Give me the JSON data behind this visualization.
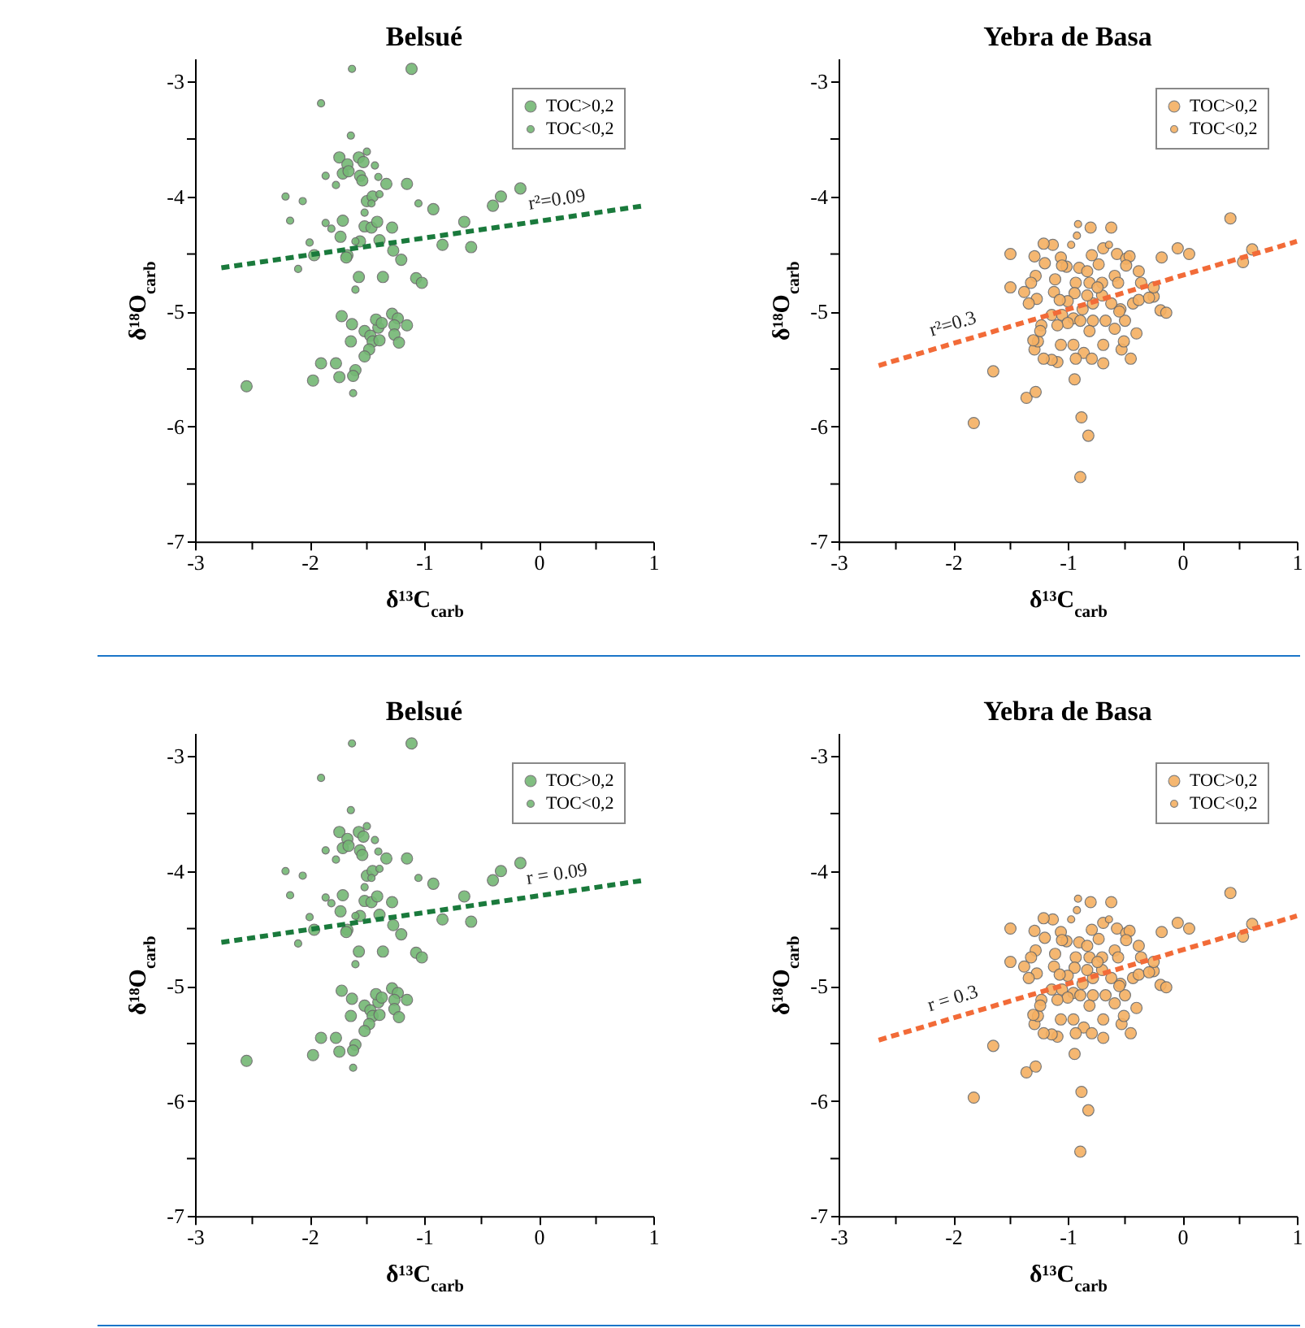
{
  "chart_data": [
    {
      "type": "scatter",
      "title": "Belsué",
      "xlabel": "δ¹³C$_{carb}$",
      "ylabel": "δ¹⁸O$_{carb}$",
      "xlim": [
        -3,
        1
      ],
      "xticks": [
        -3,
        {
          "value": -2.5,
          "label": null
        },
        -2,
        {
          "value": -1.5,
          "label": null
        },
        -1,
        {
          "value": -0.5,
          "label": null
        },
        0,
        {
          "value": 0.5,
          "label": null
        },
        1
      ],
      "ylim": [
        -7,
        -2.8
      ],
      "yticks": [
        -7,
        {
          "value": -6.5,
          "label": null
        },
        -6,
        {
          "value": -5.5,
          "label": null
        },
        -5,
        {
          "value": -4.5,
          "label": null
        },
        -4,
        {
          "value": -3.5,
          "label": null
        },
        -3
      ],
      "legend": "top right",
      "annotations": [
        "r²=0.09"
      ],
      "series": [
        {
          "name": "TOC>0,2",
          "type": "scatter",
          "color": "#74b874",
          "x": [
            -1.11,
            -1.74,
            -1.67,
            -1.71,
            -1.66,
            -1.57,
            -1.53,
            -1.56,
            -1.54,
            -1.33,
            -1.15,
            -1.71,
            -1.73,
            -1.67,
            -1.96,
            -1.68,
            -1.56,
            -1.52,
            -1.46,
            -1.41,
            -1.39,
            -1.28,
            -1.27,
            -1.2,
            -1.5,
            -1.45,
            -0.92,
            -0.65,
            -0.84,
            -0.59,
            -0.4,
            -0.33,
            -0.16,
            -1.57,
            -1.36,
            -1.07,
            -1.02,
            -1.72,
            -1.63,
            -1.52,
            -1.64,
            -1.47,
            -1.4,
            -1.42,
            -1.37,
            -1.28,
            -1.23,
            -1.26,
            -1.15,
            -1.45,
            -1.39,
            -1.26,
            -1.22,
            -1.48,
            -1.52,
            -1.9,
            -1.77,
            -1.97,
            -1.74,
            -1.6,
            -1.62,
            -2.55
          ],
          "values": [
            -2.89,
            -3.66,
            -3.72,
            -3.8,
            -3.78,
            -3.66,
            -3.7,
            -3.82,
            -3.86,
            -3.89,
            -3.89,
            -4.21,
            -4.35,
            -4.51,
            -4.51,
            -4.53,
            -4.39,
            -4.26,
            -4.27,
            -4.22,
            -4.38,
            -4.27,
            -4.47,
            -4.55,
            -4.04,
            -4.0,
            -4.11,
            -4.22,
            -4.42,
            -4.44,
            -4.08,
            -4.0,
            -3.93,
            -4.7,
            -4.7,
            -4.71,
            -4.75,
            -5.04,
            -5.11,
            -5.17,
            -5.26,
            -5.21,
            -5.14,
            -5.07,
            -5.1,
            -5.02,
            -5.06,
            -5.12,
            -5.12,
            -5.26,
            -5.25,
            -5.2,
            -5.27,
            -5.33,
            -5.39,
            -5.45,
            -5.45,
            -5.6,
            -5.57,
            -5.51,
            -5.56,
            -5.65
          ]
        },
        {
          "name": "TOC<0,2",
          "type": "scatter",
          "color": "#74b874",
          "x": [
            -1.63,
            -1.9,
            -1.64,
            -1.5,
            -1.43,
            -1.86,
            -1.77,
            -1.4,
            -1.39,
            -2.21,
            -2.06,
            -1.46,
            -1.05,
            -1.52,
            -2.17,
            -1.86,
            -1.81,
            -2.0,
            -1.6,
            -2.1,
            -1.6,
            -1.62
          ],
          "values": [
            -2.89,
            -3.19,
            -3.47,
            -3.61,
            -3.73,
            -3.82,
            -3.9,
            -3.83,
            -3.98,
            -4.0,
            -4.04,
            -4.06,
            -4.06,
            -4.14,
            -4.21,
            -4.23,
            -4.28,
            -4.4,
            -4.39,
            -4.63,
            -4.81,
            -5.71
          ]
        },
        {
          "type": "line",
          "color": "#1a7a3c",
          "line_style": "dashed",
          "x": [
            -2.77,
            0.92
          ],
          "values": [
            -4.62,
            -4.08
          ]
        }
      ]
    },
    {
      "type": "scatter",
      "title": "Yebra de Basa",
      "xlabel": "δ¹³C$_{carb}$",
      "ylabel": "δ¹⁸O$_{carb}$",
      "xlim": [
        -3,
        1
      ],
      "xticks": [
        -3,
        {
          "value": -2.5,
          "label": null
        },
        -2,
        {
          "value": -1.5,
          "label": null
        },
        -1,
        {
          "value": -0.5,
          "label": null
        },
        0,
        {
          "value": 0.5,
          "label": null
        },
        1
      ],
      "ylim": [
        -7,
        -2.8
      ],
      "yticks": [
        -7,
        {
          "value": -6.5,
          "label": null
        },
        -6,
        {
          "value": -5.5,
          "label": null
        },
        -5,
        {
          "value": -4.5,
          "label": null
        },
        -4,
        {
          "value": -3.5,
          "label": null
        },
        -3
      ],
      "legend": "top right",
      "annotations": [
        "r²=0.3"
      ],
      "series": [
        {
          "name": "TOC>0,2",
          "type": "scatter",
          "color": "#f5b062",
          "x": [
            0.42,
            0.61,
            0.53,
            -0.04,
            0.06,
            -0.18,
            -0.25,
            -0.19,
            -0.14,
            -0.38,
            -0.36,
            -0.4,
            -0.45,
            -0.5,
            -0.54,
            -0.53,
            -0.62,
            -0.8,
            -1.13,
            -1.21,
            -1.2,
            -1.29,
            -1.5,
            -1.5,
            -1.38,
            -1.28,
            -1.32,
            -1.27,
            -1.34,
            -1.11,
            -1.12,
            -1.06,
            -1.01,
            -0.9,
            -0.79,
            -0.73,
            -0.69,
            -0.57,
            -0.49,
            -0.46,
            -0.59,
            -0.56,
            -0.7,
            -0.81,
            -0.93,
            -0.94,
            -1.0,
            -1.07,
            -1.14,
            -1.05,
            -0.95,
            -0.87,
            -0.78,
            -0.7,
            -0.62,
            -0.55,
            -0.67,
            -0.78,
            -0.89,
            -1.0,
            -1.09,
            -1.23,
            -1.06,
            -0.95,
            -0.86,
            -0.81,
            -0.69,
            -0.59,
            -0.51,
            -0.79,
            -0.69,
            -0.93,
            -1.09,
            -1.14,
            -1.21,
            -1.29,
            -1.26,
            -1.3,
            -1.65,
            -1.36,
            -1.28,
            -0.94,
            -1.82,
            -0.88,
            -0.82,
            -0.89,
            -0.43,
            -0.38,
            -0.25,
            -0.29,
            -0.49,
            -0.83,
            -0.74,
            -1.24,
            -1.05,
            -0.83
          ],
          "values": [
            -4.19,
            -4.46,
            -4.57,
            -4.45,
            -4.5,
            -4.53,
            -4.87,
            -4.99,
            -5.01,
            -4.65,
            -4.75,
            -5.19,
            -5.41,
            -5.08,
            -4.98,
            -5.33,
            -4.27,
            -4.27,
            -4.42,
            -4.41,
            -4.58,
            -4.52,
            -4.5,
            -4.79,
            -4.83,
            -4.69,
            -4.75,
            -4.89,
            -4.93,
            -4.72,
            -4.83,
            -4.53,
            -4.61,
            -4.62,
            -4.51,
            -4.59,
            -4.45,
            -4.5,
            -4.54,
            -4.52,
            -4.69,
            -4.75,
            -4.75,
            -4.75,
            -4.75,
            -4.84,
            -4.91,
            -4.9,
            -5.03,
            -5.03,
            -5.06,
            -4.98,
            -4.93,
            -4.86,
            -4.93,
            -5.0,
            -5.08,
            -5.08,
            -5.08,
            -5.1,
            -5.12,
            -5.12,
            -5.29,
            -5.29,
            -5.36,
            -5.17,
            -5.29,
            -5.15,
            -5.26,
            -5.41,
            -5.45,
            -5.41,
            -5.44,
            -5.42,
            -5.41,
            -5.33,
            -5.26,
            -5.25,
            -5.52,
            -5.75,
            -5.7,
            -5.59,
            -5.97,
            -5.92,
            -6.08,
            -6.44,
            -4.93,
            -4.9,
            -4.79,
            -4.88,
            -4.6,
            -4.86,
            -4.79,
            -5.17,
            -4.6,
            -4.65
          ]
        },
        {
          "name": "TOC<0,2",
          "type": "scatter",
          "color": "#f5b062",
          "x": [
            -0.91,
            -0.92,
            -0.97,
            -0.64
          ],
          "values": [
            -4.24,
            -4.34,
            -4.42,
            -4.42
          ]
        },
        {
          "type": "line",
          "color": "#f26b38",
          "line_style": "dashed",
          "x": [
            -2.65,
            1.0
          ],
          "values": [
            -5.47,
            -4.39
          ]
        }
      ]
    },
    {
      "type": "scatter",
      "title": "Belsué",
      "xlabel": "δ¹³C$_{carb}$",
      "ylabel": "δ¹⁸O$_{carb}$",
      "xlim": [
        -3,
        1
      ],
      "xticks": [
        -3,
        {
          "value": -2.5,
          "label": null
        },
        -2,
        {
          "value": -1.5,
          "label": null
        },
        -1,
        {
          "value": -0.5,
          "label": null
        },
        0,
        {
          "value": 0.5,
          "label": null
        },
        1
      ],
      "ylim": [
        -7,
        -2.8
      ],
      "yticks": [
        -7,
        {
          "value": -6.5,
          "label": null
        },
        -6,
        {
          "value": -5.5,
          "label": null
        },
        -5,
        {
          "value": -4.5,
          "label": null
        },
        -4,
        {
          "value": -3.5,
          "label": null
        },
        -3
      ],
      "legend": "top right",
      "annotations": [
        "r = 0.09"
      ],
      "series": [
        {
          "name": "TOC>0,2",
          "type": "scatter",
          "color": "#74b874",
          "x": [
            -1.11,
            -1.74,
            -1.67,
            -1.71,
            -1.66,
            -1.57,
            -1.53,
            -1.56,
            -1.54,
            -1.33,
            -1.15,
            -1.71,
            -1.73,
            -1.67,
            -1.96,
            -1.68,
            -1.56,
            -1.52,
            -1.46,
            -1.41,
            -1.39,
            -1.28,
            -1.27,
            -1.2,
            -1.5,
            -1.45,
            -0.92,
            -0.65,
            -0.84,
            -0.59,
            -0.4,
            -0.33,
            -0.16,
            -1.57,
            -1.36,
            -1.07,
            -1.02,
            -1.72,
            -1.63,
            -1.52,
            -1.64,
            -1.47,
            -1.4,
            -1.42,
            -1.37,
            -1.28,
            -1.23,
            -1.26,
            -1.15,
            -1.45,
            -1.39,
            -1.26,
            -1.22,
            -1.48,
            -1.52,
            -1.9,
            -1.77,
            -1.97,
            -1.74,
            -1.6,
            -1.62,
            -2.55
          ],
          "values": [
            -2.89,
            -3.66,
            -3.72,
            -3.8,
            -3.78,
            -3.66,
            -3.7,
            -3.82,
            -3.86,
            -3.89,
            -3.89,
            -4.21,
            -4.35,
            -4.51,
            -4.51,
            -4.53,
            -4.39,
            -4.26,
            -4.27,
            -4.22,
            -4.38,
            -4.27,
            -4.47,
            -4.55,
            -4.04,
            -4.0,
            -4.11,
            -4.22,
            -4.42,
            -4.44,
            -4.08,
            -4.0,
            -3.93,
            -4.7,
            -4.7,
            -4.71,
            -4.75,
            -5.04,
            -5.11,
            -5.17,
            -5.26,
            -5.21,
            -5.14,
            -5.07,
            -5.1,
            -5.02,
            -5.06,
            -5.12,
            -5.12,
            -5.26,
            -5.25,
            -5.2,
            -5.27,
            -5.33,
            -5.39,
            -5.45,
            -5.45,
            -5.6,
            -5.57,
            -5.51,
            -5.56,
            -5.65
          ]
        },
        {
          "name": "TOC<0,2",
          "type": "scatter",
          "color": "#74b874",
          "x": [
            -1.63,
            -1.9,
            -1.64,
            -1.5,
            -1.43,
            -1.86,
            -1.77,
            -1.4,
            -1.39,
            -2.21,
            -2.06,
            -1.46,
            -1.05,
            -1.52,
            -2.17,
            -1.86,
            -1.81,
            -2.0,
            -1.6,
            -2.1,
            -1.6,
            -1.62
          ],
          "values": [
            -2.89,
            -3.19,
            -3.47,
            -3.61,
            -3.73,
            -3.82,
            -3.9,
            -3.83,
            -3.98,
            -4.0,
            -4.04,
            -4.06,
            -4.06,
            -4.14,
            -4.21,
            -4.23,
            -4.28,
            -4.4,
            -4.39,
            -4.63,
            -4.81,
            -5.71
          ]
        },
        {
          "type": "line",
          "color": "#1a7a3c",
          "line_style": "dashed",
          "x": [
            -2.77,
            0.92
          ],
          "values": [
            -4.62,
            -4.08
          ]
        }
      ]
    },
    {
      "type": "scatter",
      "title": "Yebra de Basa",
      "xlabel": "δ¹³C$_{carb}$",
      "ylabel": "δ¹⁸O$_{carb}$",
      "xlim": [
        -3,
        1
      ],
      "xticks": [
        -3,
        {
          "value": -2.5,
          "label": null
        },
        -2,
        {
          "value": -1.5,
          "label": null
        },
        -1,
        {
          "value": -0.5,
          "label": null
        },
        0,
        {
          "value": 0.5,
          "label": null
        },
        1
      ],
      "ylim": [
        -7,
        -2.8
      ],
      "yticks": [
        -7,
        {
          "value": -6.5,
          "label": null
        },
        -6,
        {
          "value": -5.5,
          "label": null
        },
        -5,
        {
          "value": -4.5,
          "label": null
        },
        -4,
        {
          "value": -3.5,
          "label": null
        },
        -3
      ],
      "legend": "top right",
      "annotations": [
        "r = 0.3"
      ],
      "series": [
        {
          "name": "TOC>0,2",
          "type": "scatter",
          "color": "#f5b062",
          "x": [
            0.42,
            0.61,
            0.53,
            -0.04,
            0.06,
            -0.18,
            -0.25,
            -0.19,
            -0.14,
            -0.38,
            -0.36,
            -0.4,
            -0.45,
            -0.5,
            -0.54,
            -0.53,
            -0.62,
            -0.8,
            -1.13,
            -1.21,
            -1.2,
            -1.29,
            -1.5,
            -1.5,
            -1.38,
            -1.28,
            -1.32,
            -1.27,
            -1.34,
            -1.11,
            -1.12,
            -1.06,
            -1.01,
            -0.9,
            -0.79,
            -0.73,
            -0.69,
            -0.57,
            -0.49,
            -0.46,
            -0.59,
            -0.56,
            -0.7,
            -0.81,
            -0.93,
            -0.94,
            -1.0,
            -1.07,
            -1.14,
            -1.05,
            -0.95,
            -0.87,
            -0.78,
            -0.7,
            -0.62,
            -0.55,
            -0.67,
            -0.78,
            -0.89,
            -1.0,
            -1.09,
            -1.23,
            -1.06,
            -0.95,
            -0.86,
            -0.81,
            -0.69,
            -0.59,
            -0.51,
            -0.79,
            -0.69,
            -0.93,
            -1.09,
            -1.14,
            -1.21,
            -1.29,
            -1.26,
            -1.3,
            -1.65,
            -1.36,
            -1.28,
            -0.94,
            -1.82,
            -0.88,
            -0.82,
            -0.89,
            -0.43,
            -0.38,
            -0.25,
            -0.29,
            -0.49,
            -0.83,
            -0.74,
            -1.24,
            -1.05,
            -0.83
          ],
          "values": [
            -4.19,
            -4.46,
            -4.57,
            -4.45,
            -4.5,
            -4.53,
            -4.87,
            -4.99,
            -5.01,
            -4.65,
            -4.75,
            -5.19,
            -5.41,
            -5.08,
            -4.98,
            -5.33,
            -4.27,
            -4.27,
            -4.42,
            -4.41,
            -4.58,
            -4.52,
            -4.5,
            -4.79,
            -4.83,
            -4.69,
            -4.75,
            -4.89,
            -4.93,
            -4.72,
            -4.83,
            -4.53,
            -4.61,
            -4.62,
            -4.51,
            -4.59,
            -4.45,
            -4.5,
            -4.54,
            -4.52,
            -4.69,
            -4.75,
            -4.75,
            -4.75,
            -4.75,
            -4.84,
            -4.91,
            -4.9,
            -5.03,
            -5.03,
            -5.06,
            -4.98,
            -4.93,
            -4.86,
            -4.93,
            -5.0,
            -5.08,
            -5.08,
            -5.08,
            -5.1,
            -5.12,
            -5.12,
            -5.29,
            -5.29,
            -5.36,
            -5.17,
            -5.29,
            -5.15,
            -5.26,
            -5.41,
            -5.45,
            -5.41,
            -5.44,
            -5.42,
            -5.41,
            -5.33,
            -5.26,
            -5.25,
            -5.52,
            -5.75,
            -5.7,
            -5.59,
            -5.97,
            -5.92,
            -6.08,
            -6.44,
            -4.93,
            -4.9,
            -4.79,
            -4.88,
            -4.6,
            -4.86,
            -4.79,
            -5.17,
            -4.6,
            -4.65
          ]
        },
        {
          "name": "TOC<0,2",
          "type": "scatter",
          "color": "#f5b062",
          "x": [
            -0.91,
            -0.92,
            -0.97,
            -0.64
          ],
          "values": [
            -4.24,
            -4.34,
            -4.42,
            -4.42
          ]
        },
        {
          "type": "line",
          "color": "#f26b38",
          "line_style": "dashed",
          "x": [
            -2.65,
            1.0
          ],
          "values": [
            -5.47,
            -4.39
          ]
        }
      ]
    }
  ]
}
